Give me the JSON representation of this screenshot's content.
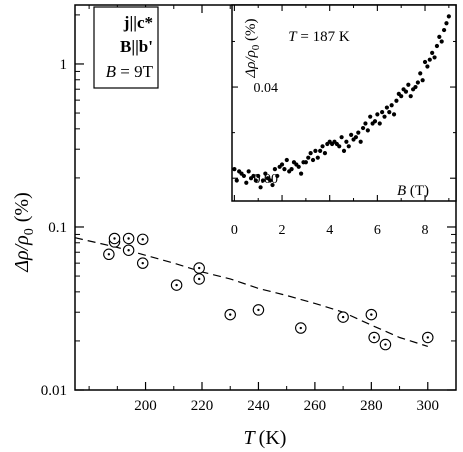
{
  "chart_data": [
    {
      "type": "scatter",
      "title": "",
      "xlabel": {
        "symbol": "T",
        "unit": "(K)"
      },
      "ylabel": {
        "symbol": "Δρ/ρ",
        "subscript": "0",
        "unit": "(%)"
      },
      "xlim": [
        175,
        310
      ],
      "ylim": [
        0.01,
        2.3
      ],
      "yscale": "log",
      "x_ticks": [
        200,
        220,
        240,
        260,
        280,
        300
      ],
      "y_ticks": [
        {
          "value": 0.01,
          "label": "0.01"
        },
        {
          "value": 0.1,
          "label": "0.1"
        },
        {
          "value": 1,
          "label": "1"
        }
      ],
      "grid": false,
      "conditions": {
        "j": "j||c*",
        "B": "B||b'",
        "field": {
          "symbol": "B",
          "value": " = 9T"
        }
      },
      "series": [
        {
          "marker": "circled-dot",
          "x": [
            187,
            189,
            189,
            194,
            194,
            199,
            199,
            211,
            219,
            219,
            230,
            240,
            255,
            270,
            280,
            281,
            285,
            300
          ],
          "y": [
            0.068,
            0.081,
            0.085,
            0.085,
            0.072,
            0.084,
            0.06,
            0.044,
            0.056,
            0.048,
            0.029,
            0.031,
            0.024,
            0.028,
            0.029,
            0.021,
            0.019,
            0.021
          ]
        },
        {
          "style": "dashed-fit",
          "x": [
            175,
            190,
            200,
            210,
            220,
            230,
            240,
            250,
            260,
            270,
            280,
            290,
            300
          ],
          "y": [
            0.086,
            0.075,
            0.067,
            0.06,
            0.053,
            0.048,
            0.042,
            0.038,
            0.034,
            0.03,
            0.025,
            0.021,
            0.0185
          ]
        }
      ]
    },
    {
      "type": "scatter",
      "title": "",
      "annotation": {
        "symbol": "T",
        "value": " = 187 K"
      },
      "xlabel": {
        "symbol": "B",
        "unit": " (T)"
      },
      "ylabel": {
        "symbol": "Δρ/ρ",
        "subscript": "0",
        "unit": " (%)"
      },
      "xlim": [
        -0.1,
        9.3
      ],
      "ylim": [
        -0.01,
        0.076
      ],
      "x_ticks": [
        0,
        2,
        4,
        6,
        8
      ],
      "y_ticks": [
        {
          "value": 0.0,
          "label": "0.00"
        },
        {
          "value": 0.04,
          "label": "0.04"
        }
      ],
      "series": [
        {
          "marker": "dot",
          "x": [
            0.0,
            0.1,
            0.2,
            0.3,
            0.4,
            0.5,
            0.6,
            0.7,
            0.8,
            0.9,
            1.0,
            1.1,
            1.2,
            1.3,
            1.4,
            1.5,
            1.6,
            1.7,
            1.8,
            1.9,
            2.0,
            2.1,
            2.2,
            2.3,
            2.4,
            2.5,
            2.6,
            2.7,
            2.8,
            2.9,
            3.0,
            3.1,
            3.2,
            3.3,
            3.4,
            3.5,
            3.6,
            3.7,
            3.8,
            3.9,
            4.0,
            4.1,
            4.2,
            4.3,
            4.4,
            4.5,
            4.6,
            4.7,
            4.8,
            4.9,
            5.0,
            5.1,
            5.2,
            5.3,
            5.4,
            5.5,
            5.6,
            5.7,
            5.8,
            5.9,
            6.0,
            6.1,
            6.2,
            6.3,
            6.4,
            6.5,
            6.6,
            6.7,
            6.8,
            6.9,
            7.0,
            7.1,
            7.2,
            7.3,
            7.4,
            7.5,
            7.6,
            7.7,
            7.8,
            7.9,
            8.0,
            8.1,
            8.2,
            8.3,
            8.4,
            8.5,
            8.6,
            8.7,
            8.8,
            8.9,
            9.0
          ],
          "y": [
            0.004,
            -0.001,
            0.003,
            0.002,
            0.001,
            -0.002,
            0.003,
            0.0,
            0.001,
            -0.001,
            0.001,
            -0.004,
            -0.001,
            0.002,
            0.0,
            -0.001,
            -0.003,
            0.004,
            0.001,
            0.005,
            0.006,
            0.004,
            0.008,
            0.003,
            0.004,
            0.007,
            0.006,
            0.005,
            0.002,
            0.007,
            0.007,
            0.009,
            0.011,
            0.008,
            0.012,
            0.009,
            0.012,
            0.014,
            0.011,
            0.015,
            0.016,
            0.015,
            0.016,
            0.015,
            0.014,
            0.018,
            0.012,
            0.016,
            0.014,
            0.019,
            0.017,
            0.018,
            0.02,
            0.016,
            0.022,
            0.024,
            0.021,
            0.027,
            0.024,
            0.025,
            0.028,
            0.024,
            0.029,
            0.027,
            0.031,
            0.029,
            0.032,
            0.028,
            0.034,
            0.037,
            0.036,
            0.039,
            0.038,
            0.041,
            0.036,
            0.039,
            0.04,
            0.042,
            0.046,
            0.043,
            0.051,
            0.049,
            0.052,
            0.055,
            0.053,
            0.058,
            0.062,
            0.06,
            0.065,
            0.068,
            0.071
          ]
        }
      ]
    }
  ]
}
